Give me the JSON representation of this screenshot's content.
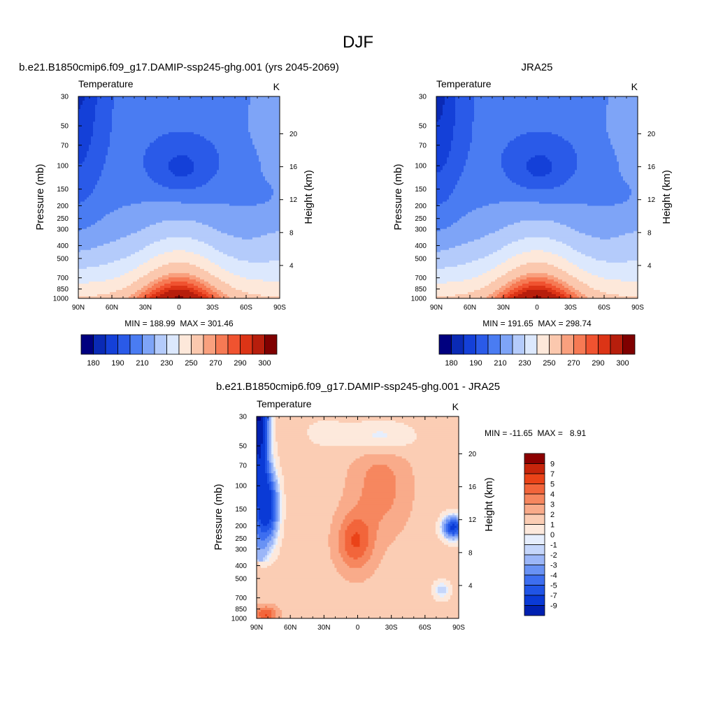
{
  "page": {
    "title": "DJF"
  },
  "palettes": {
    "abs": [
      "#00007f",
      "#0a2ab5",
      "#1440d8",
      "#2a5ae8",
      "#4a7cf2",
      "#7ea4f7",
      "#b4cbfb",
      "#dce8fd",
      "#fde8da",
      "#fbc8ae",
      "#f9a07e",
      "#f67a54",
      "#f05330",
      "#dc3416",
      "#b71e0c",
      "#7f0000"
    ],
    "diff": [
      "#00007f",
      "#0020b0",
      "#0a3ad6",
      "#2054e6",
      "#3d6ef0",
      "#6992f4",
      "#9bb6f8",
      "#c5d6fb",
      "#e6eefd",
      "#fde9dc",
      "#fbcdb4",
      "#f9ab8a",
      "#f6875f",
      "#f2653b",
      "#ea4318",
      "#c7250b",
      "#8c0000"
    ]
  },
  "chart_data": [
    {
      "id": "model",
      "type": "contour",
      "title": "b.e21.B1850cmip6.f09_g17.DAMIP-ssp245-ghg.001 (yrs 2045-2069)",
      "left_string": "Temperature",
      "right_string": "K",
      "ylabel": "Pressure (mb)",
      "y2label": "Height (km)",
      "x_ticks": [
        "90N",
        "60N",
        "30N",
        "0",
        "30S",
        "60S",
        "90S"
      ],
      "y_ticks": [
        "30",
        "50",
        "70",
        "100",
        "150",
        "200",
        "250",
        "300",
        "400",
        "500",
        "700",
        "850",
        "1000"
      ],
      "y2_ticks": [
        "20",
        "16",
        "12",
        "8",
        "4"
      ],
      "min_max": "MIN = 188.99  MAX = 301.46",
      "colorbar_labels": [
        "180",
        "190",
        "210",
        "230",
        "250",
        "270",
        "290",
        "300"
      ],
      "contour_levels": [
        180,
        185,
        190,
        200,
        210,
        220,
        230,
        240,
        250,
        260,
        270,
        275,
        280,
        285,
        290,
        300
      ]
    },
    {
      "id": "obs",
      "type": "contour",
      "title": "JRA25",
      "left_string": "Temperature",
      "right_string": "K",
      "ylabel": "Pressure (mb)",
      "y2label": "Height (km)",
      "x_ticks": [
        "90N",
        "60N",
        "30N",
        "0",
        "30S",
        "60S",
        "90S"
      ],
      "y_ticks": [
        "30",
        "50",
        "70",
        "100",
        "150",
        "200",
        "250",
        "300",
        "400",
        "500",
        "700",
        "850",
        "1000"
      ],
      "y2_ticks": [
        "20",
        "16",
        "12",
        "8",
        "4"
      ],
      "min_max": "MIN = 191.65  MAX = 298.74",
      "colorbar_labels": [
        "180",
        "190",
        "210",
        "230",
        "250",
        "270",
        "290",
        "300"
      ],
      "contour_levels": [
        180,
        185,
        190,
        200,
        210,
        220,
        230,
        240,
        250,
        260,
        270,
        275,
        280,
        285,
        290,
        300
      ]
    },
    {
      "id": "diff",
      "type": "contour",
      "title": "b.e21.B1850cmip6.f09_g17.DAMIP-ssp245-ghg.001 - JRA25",
      "left_string": "Temperature",
      "right_string": "K",
      "ylabel": "Pressure (mb)",
      "y2label": "Height (km)",
      "x_ticks": [
        "90N",
        "60N",
        "30N",
        "0",
        "30S",
        "60S",
        "90S"
      ],
      "y_ticks": [
        "30",
        "50",
        "70",
        "100",
        "150",
        "200",
        "250",
        "300",
        "400",
        "500",
        "700",
        "850",
        "1000"
      ],
      "y2_ticks": [
        "20",
        "16",
        "12",
        "8",
        "4"
      ],
      "min_max": "MIN = -11.65  MAX =   8.91",
      "colorbar_labels": [
        "9",
        "7",
        "5",
        "4",
        "3",
        "2",
        "1",
        "0",
        "-1",
        "-2",
        "-3",
        "-4",
        "-5",
        "-7",
        "-9"
      ],
      "contour_levels": [
        -9,
        -7,
        -5,
        -4,
        -3,
        -2,
        -1,
        0,
        1,
        2,
        3,
        4,
        5,
        7,
        9
      ]
    }
  ]
}
